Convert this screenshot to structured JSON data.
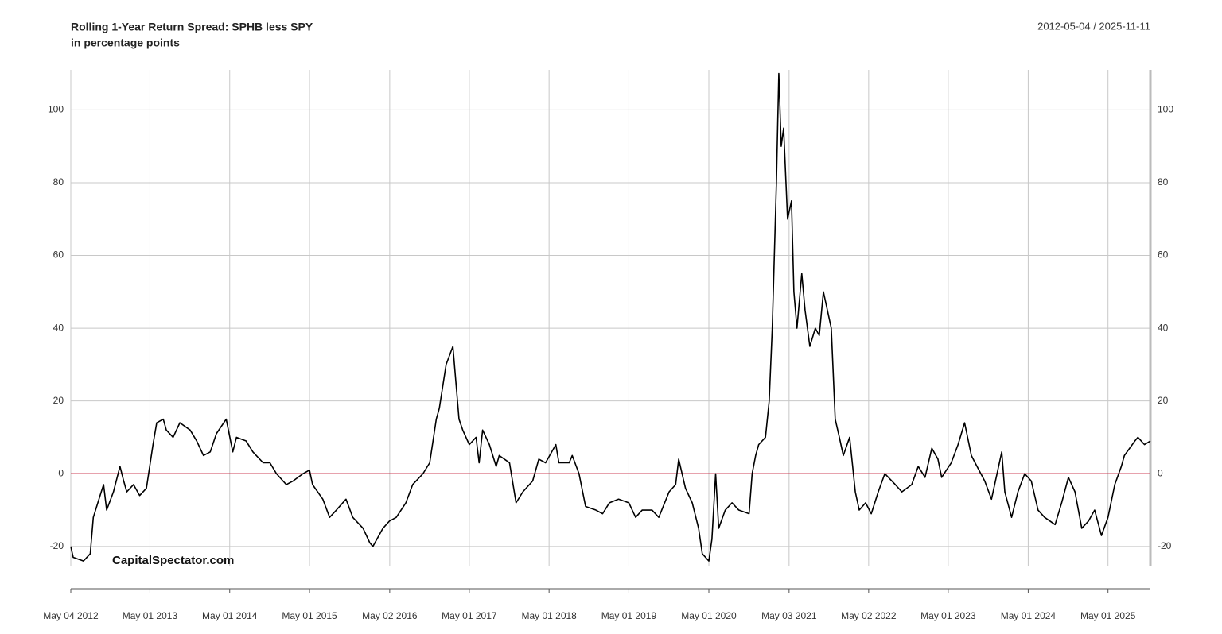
{
  "chart_data": {
    "type": "line",
    "title": "Rolling 1-Year Return Spread: SPHB less SPY",
    "subtitle": "in percentage points",
    "date_range": "2012-05-04 / 2025-11-11",
    "watermark": "CapitalSpectator.com",
    "color": "#000000",
    "hline": {
      "value": 0,
      "color": "#c8102e"
    },
    "grid": true,
    "xlim": [
      "2012-05-04",
      "2025-11-11"
    ],
    "xticks": [
      {
        "value": "2012-05-04",
        "label": "May 04 2012"
      },
      {
        "value": "2013-05-01",
        "label": "May 01 2013"
      },
      {
        "value": "2014-05-01",
        "label": "May 01 2014"
      },
      {
        "value": "2015-05-01",
        "label": "May 01 2015"
      },
      {
        "value": "2016-05-02",
        "label": "May 02 2016"
      },
      {
        "value": "2017-05-01",
        "label": "May 01 2017"
      },
      {
        "value": "2018-05-01",
        "label": "May 01 2018"
      },
      {
        "value": "2019-05-01",
        "label": "May 01 2019"
      },
      {
        "value": "2020-05-01",
        "label": "May 01 2020"
      },
      {
        "value": "2021-05-03",
        "label": "May 03 2021"
      },
      {
        "value": "2022-05-02",
        "label": "May 02 2022"
      },
      {
        "value": "2023-05-01",
        "label": "May 01 2023"
      },
      {
        "value": "2024-05-01",
        "label": "May 01 2024"
      },
      {
        "value": "2025-05-01",
        "label": "May 01 2025"
      }
    ],
    "ylim": [
      -25.5,
      111
    ],
    "yticks": [
      -20,
      0,
      20,
      40,
      60,
      80,
      100
    ],
    "x": [
      "2012-05-04",
      "2012-05-15",
      "2012-07-01",
      "2012-08-01",
      "2012-08-15",
      "2012-09-15",
      "2012-10-01",
      "2012-10-15",
      "2012-11-15",
      "2012-12-15",
      "2013-01-01",
      "2013-01-15",
      "2013-02-15",
      "2013-03-15",
      "2013-04-15",
      "2013-05-15",
      "2013-06-01",
      "2013-07-01",
      "2013-07-15",
      "2013-08-15",
      "2013-09-15",
      "2013-11-01",
      "2013-12-01",
      "2014-01-01",
      "2014-02-01",
      "2014-03-01",
      "2014-04-15",
      "2014-05-15",
      "2014-06-01",
      "2014-07-15",
      "2014-08-15",
      "2014-10-01",
      "2014-11-01",
      "2014-12-01",
      "2015-01-15",
      "2015-02-15",
      "2015-04-01",
      "2015-05-01",
      "2015-05-15",
      "2015-07-01",
      "2015-08-01",
      "2015-09-01",
      "2015-10-15",
      "2015-11-15",
      "2016-01-01",
      "2016-02-01",
      "2016-02-15",
      "2016-04-01",
      "2016-05-01",
      "2016-06-01",
      "2016-07-15",
      "2016-08-15",
      "2016-10-01",
      "2016-11-01",
      "2016-12-01",
      "2016-12-15",
      "2017-01-15",
      "2017-02-15",
      "2017-03-01",
      "2017-03-15",
      "2017-04-01",
      "2017-05-01",
      "2017-06-01",
      "2017-06-15",
      "2017-07-01",
      "2017-08-01",
      "2017-09-01",
      "2017-09-15",
      "2017-11-01",
      "2017-12-01",
      "2018-01-01",
      "2018-02-15",
      "2018-03-15",
      "2018-04-15",
      "2018-06-01",
      "2018-06-15",
      "2018-08-01",
      "2018-08-15",
      "2018-09-15",
      "2018-10-15",
      "2018-12-01",
      "2019-01-01",
      "2019-02-01",
      "2019-03-15",
      "2019-05-01",
      "2019-06-01",
      "2019-07-01",
      "2019-08-15",
      "2019-09-15",
      "2019-11-01",
      "2019-12-01",
      "2019-12-15",
      "2020-01-15",
      "2020-02-15",
      "2020-03-15",
      "2020-04-01",
      "2020-05-01",
      "2020-05-15",
      "2020-06-01",
      "2020-06-15",
      "2020-07-15",
      "2020-08-15",
      "2020-09-15",
      "2020-11-01",
      "2020-11-15",
      "2020-12-01",
      "2020-12-15",
      "2021-01-15",
      "2021-02-01",
      "2021-02-15",
      "2021-03-06",
      "2021-03-17",
      "2021-03-28",
      "2021-04-08",
      "2021-04-26",
      "2021-05-14",
      "2021-05-25",
      "2021-06-08",
      "2021-06-30",
      "2021-07-15",
      "2021-08-06",
      "2021-08-31",
      "2021-09-18",
      "2021-10-07",
      "2021-10-25",
      "2021-11-12",
      "2021-11-30",
      "2021-12-19",
      "2022-01-06",
      "2022-02-04",
      "2022-03-02",
      "2022-03-20",
      "2022-04-18",
      "2022-05-14",
      "2022-06-15",
      "2022-07-15",
      "2022-09-01",
      "2022-10-01",
      "2022-11-15",
      "2022-12-15",
      "2023-01-15",
      "2023-02-15",
      "2023-03-15",
      "2023-04-01",
      "2023-05-15",
      "2023-06-15",
      "2023-07-15",
      "2023-08-15",
      "2023-09-01",
      "2023-10-15",
      "2023-11-15",
      "2024-01-01",
      "2024-01-15",
      "2024-02-15",
      "2024-03-15",
      "2024-04-15",
      "2024-05-15",
      "2024-06-15",
      "2024-07-15",
      "2024-09-01",
      "2024-10-01",
      "2024-11-01",
      "2024-12-01",
      "2025-01-01",
      "2025-02-01",
      "2025-03-01",
      "2025-04-01",
      "2025-05-01",
      "2025-06-01",
      "2025-07-01",
      "2025-07-15",
      "2025-09-01",
      "2025-09-15",
      "2025-10-15",
      "2025-11-11"
    ],
    "values": [
      -20,
      -23,
      -24,
      -22,
      -12,
      -6,
      -3,
      -10,
      -5,
      2,
      -2,
      -5,
      -3,
      -6,
      -4,
      8,
      14,
      15,
      12,
      10,
      14,
      12,
      9,
      5,
      6,
      11,
      15,
      6,
      10,
      9,
      6,
      3,
      3,
      0,
      -3,
      -2,
      0,
      1,
      -3,
      -7,
      -12,
      -10,
      -7,
      -12,
      -15,
      -19,
      -20,
      -15,
      -13,
      -12,
      -8,
      -3,
      0,
      3,
      15,
      18,
      30,
      35,
      25,
      15,
      12,
      8,
      10,
      3,
      12,
      8,
      2,
      5,
      3,
      -8,
      -5,
      -2,
      4,
      3,
      8,
      3,
      3,
      5,
      0,
      -9,
      -10,
      -11,
      -8,
      -7,
      -8,
      -12,
      -10,
      -10,
      -12,
      -5,
      -3,
      4,
      -4,
      -8,
      -15,
      -22,
      -24,
      -18,
      0,
      -15,
      -10,
      -8,
      -10,
      -11,
      0,
      5,
      8,
      10,
      20,
      40,
      80,
      110,
      90,
      95,
      70,
      75,
      50,
      40,
      55,
      45,
      35,
      40,
      38,
      50,
      45,
      40,
      15,
      10,
      5,
      10,
      -5,
      -10,
      -8,
      -11,
      -5,
      0,
      -3,
      -5,
      -3,
      2,
      -1,
      7,
      4,
      -1,
      3,
      8,
      14,
      5,
      3,
      -2,
      -7,
      6,
      -5,
      -12,
      -5,
      0,
      -2,
      -10,
      -12,
      -14,
      -8,
      -1,
      -5,
      -15,
      -13,
      -10,
      -17,
      -12,
      -3,
      2,
      5,
      9,
      10,
      8,
      9
    ]
  }
}
